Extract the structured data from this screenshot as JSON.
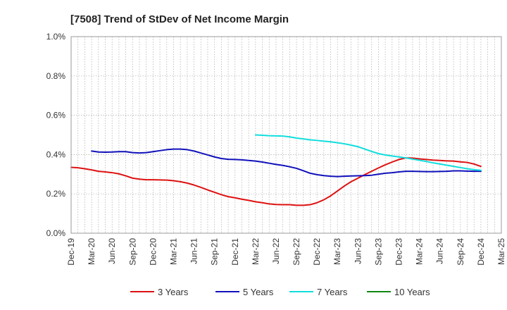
{
  "chart_data": {
    "type": "line",
    "title": "[7508]  Trend of StDev of Net Income Margin",
    "xlabel": "",
    "ylabel": "",
    "x_ticks": [
      "Dec-19",
      "Mar-20",
      "Jun-20",
      "Sep-20",
      "Dec-20",
      "Mar-21",
      "Jun-21",
      "Sep-21",
      "Dec-21",
      "Mar-22",
      "Jun-22",
      "Sep-22",
      "Dec-22",
      "Mar-23",
      "Jun-23",
      "Sep-23",
      "Dec-23",
      "Mar-24",
      "Jun-24",
      "Sep-24",
      "Dec-24",
      "Mar-25"
    ],
    "y_ticks": [
      "0.0%",
      "0.2%",
      "0.4%",
      "0.6%",
      "0.8%",
      "1.0%"
    ],
    "ylim": [
      0,
      1.0
    ],
    "y_unit": "%",
    "grid": true,
    "legend_position": "bottom",
    "series": [
      {
        "name": "3 Years",
        "color": "#dd1111",
        "x": [
          "Dec-19",
          "Jan-20",
          "Feb-20",
          "Mar-20",
          "Apr-20",
          "May-20",
          "Jun-20",
          "Jul-20",
          "Aug-20",
          "Sep-20",
          "Oct-20",
          "Nov-20",
          "Dec-20",
          "Jan-21",
          "Feb-21",
          "Mar-21",
          "Apr-21",
          "May-21",
          "Jun-21",
          "Jul-21",
          "Aug-21",
          "Sep-21",
          "Oct-21",
          "Nov-21",
          "Dec-21",
          "Jan-22",
          "Feb-22",
          "Mar-22",
          "Apr-22",
          "May-22",
          "Jun-22",
          "Jul-22",
          "Aug-22",
          "Sep-22",
          "Oct-22",
          "Nov-22",
          "Dec-22",
          "Jan-23",
          "Feb-23",
          "Mar-23",
          "Apr-23",
          "May-23",
          "Jun-23",
          "Jul-23",
          "Aug-23",
          "Sep-23",
          "Oct-23",
          "Nov-23",
          "Dec-23",
          "Jan-24",
          "Feb-24",
          "Mar-24",
          "Apr-24",
          "May-24",
          "Jun-24",
          "Jul-24",
          "Aug-24",
          "Sep-24",
          "Oct-24",
          "Nov-24",
          "Dec-24"
        ],
        "values": [
          0.335,
          0.333,
          0.328,
          0.322,
          0.315,
          0.312,
          0.308,
          0.302,
          0.292,
          0.28,
          0.275,
          0.272,
          0.272,
          0.271,
          0.27,
          0.267,
          0.262,
          0.255,
          0.245,
          0.233,
          0.22,
          0.208,
          0.196,
          0.186,
          0.18,
          0.173,
          0.167,
          0.16,
          0.155,
          0.149,
          0.146,
          0.145,
          0.145,
          0.142,
          0.142,
          0.145,
          0.155,
          0.17,
          0.19,
          0.215,
          0.24,
          0.262,
          0.28,
          0.298,
          0.315,
          0.332,
          0.348,
          0.362,
          0.375,
          0.383,
          0.382,
          0.378,
          0.375,
          0.372,
          0.37,
          0.368,
          0.367,
          0.363,
          0.36,
          0.352,
          0.34
        ]
      },
      {
        "name": "5 Years",
        "color": "#1111bb",
        "x": [
          "Mar-20",
          "Apr-20",
          "May-20",
          "Jun-20",
          "Jul-20",
          "Aug-20",
          "Sep-20",
          "Oct-20",
          "Nov-20",
          "Dec-20",
          "Jan-21",
          "Feb-21",
          "Mar-21",
          "Apr-21",
          "May-21",
          "Jun-21",
          "Jul-21",
          "Aug-21",
          "Sep-21",
          "Oct-21",
          "Nov-21",
          "Dec-21",
          "Jan-22",
          "Feb-22",
          "Mar-22",
          "Apr-22",
          "May-22",
          "Jun-22",
          "Jul-22",
          "Aug-22",
          "Sep-22",
          "Oct-22",
          "Nov-22",
          "Dec-22",
          "Jan-23",
          "Feb-23",
          "Mar-23",
          "Apr-23",
          "May-23",
          "Jun-23",
          "Jul-23",
          "Aug-23",
          "Sep-23",
          "Oct-23",
          "Nov-23",
          "Dec-23",
          "Jan-24",
          "Feb-24",
          "Mar-24",
          "Apr-24",
          "May-24",
          "Jun-24",
          "Jul-24",
          "Aug-24",
          "Sep-24",
          "Oct-24",
          "Nov-24",
          "Dec-24"
        ],
        "values": [
          0.418,
          0.413,
          0.412,
          0.413,
          0.415,
          0.415,
          0.41,
          0.408,
          0.41,
          0.415,
          0.42,
          0.425,
          0.428,
          0.428,
          0.425,
          0.418,
          0.408,
          0.398,
          0.388,
          0.38,
          0.376,
          0.375,
          0.373,
          0.37,
          0.367,
          0.362,
          0.356,
          0.35,
          0.345,
          0.338,
          0.33,
          0.318,
          0.305,
          0.298,
          0.293,
          0.29,
          0.288,
          0.29,
          0.291,
          0.292,
          0.293,
          0.295,
          0.3,
          0.305,
          0.308,
          0.312,
          0.315,
          0.315,
          0.314,
          0.313,
          0.313,
          0.314,
          0.315,
          0.317,
          0.317,
          0.316,
          0.315,
          0.315
        ]
      },
      {
        "name": "7 Years",
        "color": "#11dddd",
        "x": [
          "Mar-22",
          "Apr-22",
          "May-22",
          "Jun-22",
          "Jul-22",
          "Aug-22",
          "Sep-22",
          "Oct-22",
          "Nov-22",
          "Dec-22",
          "Jan-23",
          "Feb-23",
          "Mar-23",
          "Apr-23",
          "May-23",
          "Jun-23",
          "Jul-23",
          "Aug-23",
          "Sep-23",
          "Oct-23",
          "Nov-23",
          "Dec-23",
          "Jan-24",
          "Feb-24",
          "Mar-24",
          "Apr-24",
          "May-24",
          "Jun-24",
          "Jul-24",
          "Aug-24",
          "Sep-24",
          "Oct-24",
          "Nov-24",
          "Dec-24"
        ],
        "values": [
          0.5,
          0.498,
          0.496,
          0.495,
          0.494,
          0.49,
          0.484,
          0.48,
          0.475,
          0.472,
          0.468,
          0.465,
          0.46,
          0.455,
          0.448,
          0.44,
          0.428,
          0.416,
          0.405,
          0.398,
          0.393,
          0.388,
          0.383,
          0.377,
          0.371,
          0.365,
          0.358,
          0.352,
          0.346,
          0.34,
          0.334,
          0.328,
          0.323,
          0.32
        ]
      },
      {
        "name": "10 Years",
        "color": "#118811",
        "x": [],
        "values": []
      }
    ]
  }
}
